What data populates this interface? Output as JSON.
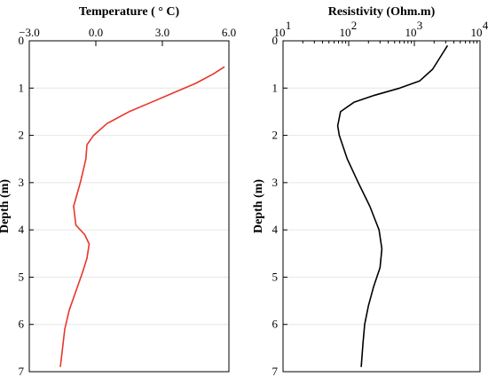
{
  "chart_data": [
    {
      "type": "line",
      "title": "Temperature ( ° C)",
      "xlabel": "",
      "ylabel": "Depth (m)",
      "xlim": [
        -3.0,
        6.0
      ],
      "ylim": [
        0,
        7
      ],
      "x_ticks": [
        "−3.0",
        "0.0",
        "3.0",
        "6.0"
      ],
      "y_ticks": [
        "0",
        "1",
        "2",
        "3",
        "4",
        "5",
        "6",
        "7"
      ],
      "y_inverted": true,
      "grid": "horizontal light",
      "series": [
        {
          "color": "#e8362a",
          "x": [
            5.8,
            5.3,
            4.5,
            3.5,
            2.5,
            1.5,
            0.5,
            -0.1,
            -0.4,
            -0.45,
            -0.55,
            -0.7,
            -1.0,
            -0.9,
            -0.5,
            -0.3,
            -0.4,
            -0.6,
            -0.9,
            -1.2,
            -1.4,
            -1.5,
            -1.6
          ],
          "y": [
            0.55,
            0.7,
            0.9,
            1.1,
            1.3,
            1.5,
            1.75,
            2.0,
            2.2,
            2.5,
            2.7,
            3.0,
            3.5,
            3.9,
            4.1,
            4.3,
            4.6,
            4.9,
            5.3,
            5.7,
            6.1,
            6.5,
            6.9
          ]
        }
      ]
    },
    {
      "type": "line",
      "title": "Resistivity  (Ohm.m)",
      "xlabel": "",
      "ylabel": "Depth (m)",
      "xscale": "log",
      "xlim": [
        10,
        10000
      ],
      "ylim": [
        0,
        7
      ],
      "x_ticks": [
        "10",
        "10",
        "10",
        "10"
      ],
      "x_tick_exponents": [
        "1",
        "2",
        "3",
        "4"
      ],
      "y_ticks": [
        "0",
        "1",
        "2",
        "3",
        "4",
        "5",
        "6",
        "7"
      ],
      "y_inverted": true,
      "grid": "horizontal light",
      "series": [
        {
          "color": "#000000",
          "x": [
            3200,
            2600,
            1900,
            1200,
            600,
            250,
            120,
            75,
            68,
            72,
            95,
            140,
            210,
            290,
            320,
            300,
            240,
            200,
            175,
            165,
            155
          ],
          "y": [
            0.1,
            0.3,
            0.6,
            0.85,
            1.0,
            1.15,
            1.3,
            1.5,
            1.8,
            2.0,
            2.5,
            3.0,
            3.5,
            4.0,
            4.4,
            4.8,
            5.2,
            5.6,
            6.0,
            6.4,
            6.9
          ]
        }
      ]
    }
  ]
}
